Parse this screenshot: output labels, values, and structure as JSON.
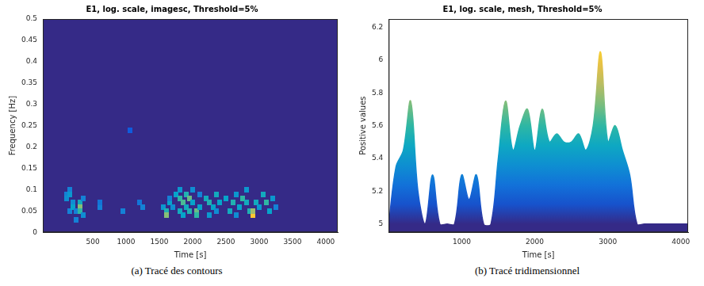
{
  "chart_data": [
    {
      "type": "heatmap",
      "title": "E1, log. scale, imagesc, Threshold=5%",
      "caption": "(a) Tracé des contours",
      "x_label": "Time [s]",
      "y_label": "Frequency [Hz]",
      "xlim": [
        -250,
        4180
      ],
      "xticks": [
        500,
        1000,
        1500,
        2000,
        2500,
        3000,
        3500,
        4000
      ],
      "ylim": [
        0,
        0.5
      ],
      "yticks": [
        0,
        0.05,
        0.1,
        0.15,
        0.2,
        0.25,
        0.3,
        0.35,
        0.4,
        0.45,
        0.5
      ],
      "grid": false,
      "color_range": [
        5,
        6.2
      ],
      "cell_t_step": 50,
      "cell_f_step": 0.01,
      "cells": [
        [
          100,
          0.09,
          5.3
        ],
        [
          100,
          0.08,
          5.35
        ],
        [
          150,
          0.1,
          5.3
        ],
        [
          150,
          0.09,
          5.4
        ],
        [
          150,
          0.05,
          5.3
        ],
        [
          200,
          0.07,
          5.35
        ],
        [
          200,
          0.06,
          5.45
        ],
        [
          250,
          0.05,
          5.3
        ],
        [
          250,
          0.03,
          5.3
        ],
        [
          300,
          0.07,
          5.5
        ],
        [
          300,
          0.06,
          5.75
        ],
        [
          300,
          0.05,
          5.6
        ],
        [
          350,
          0.04,
          5.35
        ],
        [
          350,
          0.08,
          5.3
        ],
        [
          600,
          0.06,
          5.3
        ],
        [
          600,
          0.07,
          5.25
        ],
        [
          950,
          0.05,
          5.3
        ],
        [
          1050,
          0.24,
          5.15
        ],
        [
          1200,
          0.07,
          5.25
        ],
        [
          1250,
          0.06,
          5.3
        ],
        [
          1550,
          0.06,
          5.4
        ],
        [
          1600,
          0.05,
          5.55
        ],
        [
          1600,
          0.04,
          5.75
        ],
        [
          1650,
          0.07,
          5.45
        ],
        [
          1650,
          0.08,
          5.3
        ],
        [
          1700,
          0.06,
          5.35
        ],
        [
          1750,
          0.09,
          5.45
        ],
        [
          1800,
          0.1,
          5.4
        ],
        [
          1800,
          0.08,
          5.6
        ],
        [
          1800,
          0.05,
          5.5
        ],
        [
          1850,
          0.07,
          5.65
        ],
        [
          1850,
          0.04,
          5.45
        ],
        [
          1900,
          0.09,
          5.55
        ],
        [
          1900,
          0.06,
          5.5
        ],
        [
          1950,
          0.08,
          5.7
        ],
        [
          1950,
          0.05,
          5.55
        ],
        [
          2000,
          0.1,
          5.35
        ],
        [
          2000,
          0.07,
          5.45
        ],
        [
          2050,
          0.05,
          5.7
        ],
        [
          2050,
          0.04,
          5.6
        ],
        [
          2100,
          0.06,
          5.45
        ],
        [
          2100,
          0.09,
          5.3
        ],
        [
          2200,
          0.08,
          5.5
        ],
        [
          2250,
          0.07,
          5.55
        ],
        [
          2250,
          0.04,
          5.4
        ],
        [
          2300,
          0.06,
          5.45
        ],
        [
          2350,
          0.09,
          5.5
        ],
        [
          2350,
          0.05,
          5.35
        ],
        [
          2400,
          0.07,
          5.45
        ],
        [
          2500,
          0.08,
          5.45
        ],
        [
          2550,
          0.05,
          5.5
        ],
        [
          2600,
          0.07,
          5.55
        ],
        [
          2650,
          0.09,
          5.4
        ],
        [
          2650,
          0.04,
          5.35
        ],
        [
          2700,
          0.06,
          5.45
        ],
        [
          2750,
          0.08,
          5.6
        ],
        [
          2800,
          0.07,
          5.5
        ],
        [
          2800,
          0.1,
          5.4
        ],
        [
          2850,
          0.05,
          5.55
        ],
        [
          2900,
          0.04,
          6.05
        ],
        [
          2900,
          0.05,
          5.8
        ],
        [
          2950,
          0.07,
          5.5
        ],
        [
          3000,
          0.06,
          5.4
        ],
        [
          3050,
          0.09,
          5.5
        ],
        [
          3100,
          0.07,
          5.6
        ],
        [
          3150,
          0.05,
          5.45
        ],
        [
          3200,
          0.08,
          5.4
        ],
        [
          3250,
          0.06,
          5.3
        ]
      ]
    },
    {
      "type": "line",
      "title": "E1, log. scale, mesh, Threshold=5%",
      "caption": "(b) Tracé tridimensionnel",
      "x_label": "Time [s]",
      "y_label": "Positive values",
      "xlim": [
        0,
        4100
      ],
      "xticks": [
        1000,
        2000,
        3000,
        4000
      ],
      "ylim": [
        4.95,
        6.25
      ],
      "yticks": [
        5,
        5.2,
        5.4,
        5.6,
        5.8,
        6,
        6.2
      ],
      "grid": false,
      "color_range": [
        5,
        6.2
      ],
      "x": [
        0,
        100,
        200,
        300,
        400,
        500,
        600,
        700,
        800,
        900,
        1000,
        1100,
        1200,
        1300,
        1400,
        1500,
        1600,
        1700,
        1800,
        1900,
        2000,
        2100,
        2200,
        2300,
        2400,
        2500,
        2600,
        2700,
        2800,
        2900,
        3000,
        3100,
        3200,
        3300,
        3400,
        3500,
        3600,
        3700,
        3800,
        3900,
        4000,
        4100
      ],
      "values": [
        5,
        5.35,
        5.45,
        5.75,
        5.2,
        5,
        5.3,
        5,
        5,
        5,
        5.3,
        5.15,
        5.3,
        5,
        5,
        5.4,
        5.75,
        5.45,
        5.6,
        5.7,
        5.45,
        5.7,
        5.5,
        5.55,
        5.5,
        5.5,
        5.55,
        5.45,
        5.6,
        6.05,
        5.5,
        5.6,
        5.45,
        5.3,
        5,
        5,
        5,
        5,
        5,
        5,
        5,
        5
      ]
    }
  ]
}
